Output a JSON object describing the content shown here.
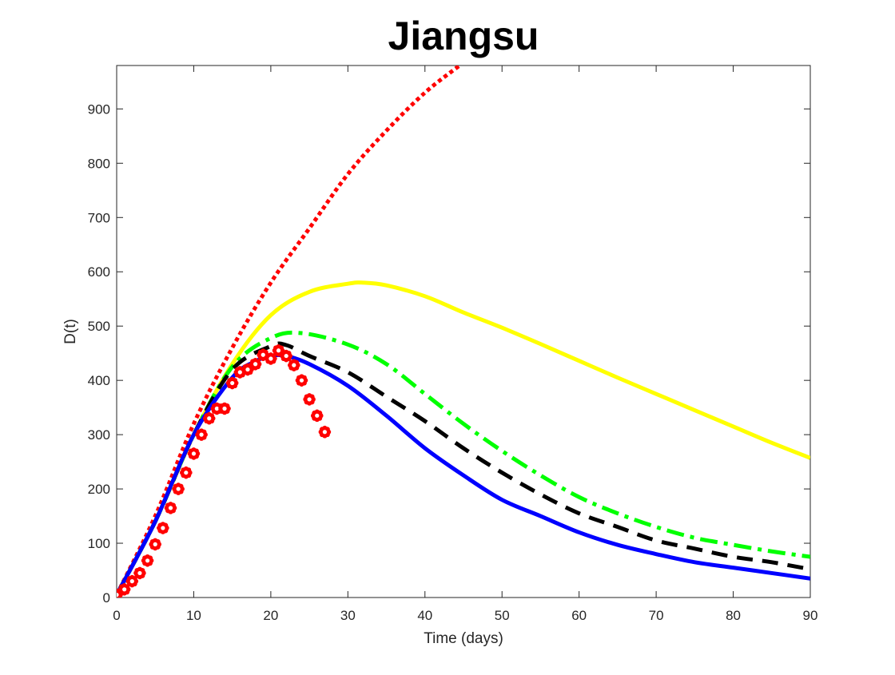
{
  "chart_data": {
    "type": "line",
    "title": "Jiangsu",
    "xlabel": "Time (days)",
    "ylabel": "D(t)",
    "xlim": [
      0,
      90
    ],
    "ylim": [
      0,
      980
    ],
    "xticks": [
      "0",
      "10",
      "20",
      "30",
      "40",
      "50",
      "60",
      "70",
      "80",
      "90"
    ],
    "yticks": [
      "0",
      "100",
      "200",
      "300",
      "400",
      "500",
      "600",
      "700",
      "800",
      "900"
    ],
    "grid": false,
    "legend": "none",
    "series": [
      {
        "style": "dotted",
        "color": "#ff0000",
        "points": [
          [
            0,
            5
          ],
          [
            5,
            150
          ],
          [
            10,
            320
          ],
          [
            15,
            460
          ],
          [
            20,
            580
          ],
          [
            25,
            680
          ],
          [
            30,
            780
          ],
          [
            35,
            860
          ],
          [
            40,
            930
          ],
          [
            44.5,
            980
          ]
        ]
      },
      {
        "style": "solid",
        "color": "#ffff00",
        "points": [
          [
            0,
            5
          ],
          [
            5,
            140
          ],
          [
            10,
            300
          ],
          [
            15,
            430
          ],
          [
            20,
            520
          ],
          [
            25,
            563
          ],
          [
            30,
            578
          ],
          [
            32,
            580
          ],
          [
            35,
            575
          ],
          [
            40,
            555
          ],
          [
            45,
            525
          ],
          [
            50,
            497
          ],
          [
            55,
            467
          ],
          [
            60,
            436
          ],
          [
            65,
            405
          ],
          [
            70,
            375
          ],
          [
            75,
            345
          ],
          [
            80,
            315
          ],
          [
            85,
            285
          ],
          [
            90,
            257
          ]
        ]
      },
      {
        "style": "dash-dot",
        "color": "#00ff00",
        "points": [
          [
            0,
            5
          ],
          [
            5,
            140
          ],
          [
            10,
            300
          ],
          [
            15,
            425
          ],
          [
            20,
            478
          ],
          [
            24,
            487
          ],
          [
            30,
            466
          ],
          [
            35,
            430
          ],
          [
            40,
            375
          ],
          [
            45,
            320
          ],
          [
            50,
            270
          ],
          [
            55,
            225
          ],
          [
            60,
            185
          ],
          [
            65,
            155
          ],
          [
            70,
            130
          ],
          [
            75,
            110
          ],
          [
            80,
            97
          ],
          [
            85,
            85
          ],
          [
            90,
            75
          ]
        ]
      },
      {
        "style": "dashed",
        "color": "#000000",
        "points": [
          [
            0,
            5
          ],
          [
            5,
            140
          ],
          [
            10,
            300
          ],
          [
            15,
            420
          ],
          [
            20,
            463
          ],
          [
            22,
            465
          ],
          [
            25,
            445
          ],
          [
            30,
            415
          ],
          [
            35,
            370
          ],
          [
            40,
            325
          ],
          [
            45,
            275
          ],
          [
            50,
            230
          ],
          [
            55,
            190
          ],
          [
            60,
            155
          ],
          [
            65,
            130
          ],
          [
            70,
            105
          ],
          [
            75,
            90
          ],
          [
            80,
            75
          ],
          [
            85,
            65
          ],
          [
            90,
            52
          ]
        ]
      },
      {
        "style": "solid",
        "color": "#0000ff",
        "points": [
          [
            0,
            5
          ],
          [
            5,
            140
          ],
          [
            10,
            300
          ],
          [
            15,
            405
          ],
          [
            18,
            435
          ],
          [
            20,
            445
          ],
          [
            22,
            445
          ],
          [
            25,
            430
          ],
          [
            30,
            390
          ],
          [
            35,
            335
          ],
          [
            40,
            275
          ],
          [
            45,
            225
          ],
          [
            50,
            180
          ],
          [
            55,
            150
          ],
          [
            60,
            120
          ],
          [
            65,
            97
          ],
          [
            70,
            80
          ],
          [
            75,
            65
          ],
          [
            80,
            55
          ],
          [
            85,
            45
          ],
          [
            90,
            35
          ]
        ]
      }
    ],
    "observed": {
      "marker": "flower",
      "color": "#ff0000",
      "x": [
        0,
        1,
        2,
        3,
        4,
        5,
        6,
        7,
        8,
        9,
        10,
        11,
        12,
        13,
        14,
        15,
        16,
        17,
        18,
        19,
        20,
        21,
        22,
        23,
        24,
        25,
        26,
        27
      ],
      "y": [
        5,
        15,
        30,
        45,
        68,
        98,
        128,
        165,
        200,
        230,
        265,
        300,
        330,
        348,
        348,
        395,
        415,
        420,
        430,
        447,
        440,
        455,
        445,
        428,
        400,
        365,
        335,
        305
      ]
    }
  }
}
